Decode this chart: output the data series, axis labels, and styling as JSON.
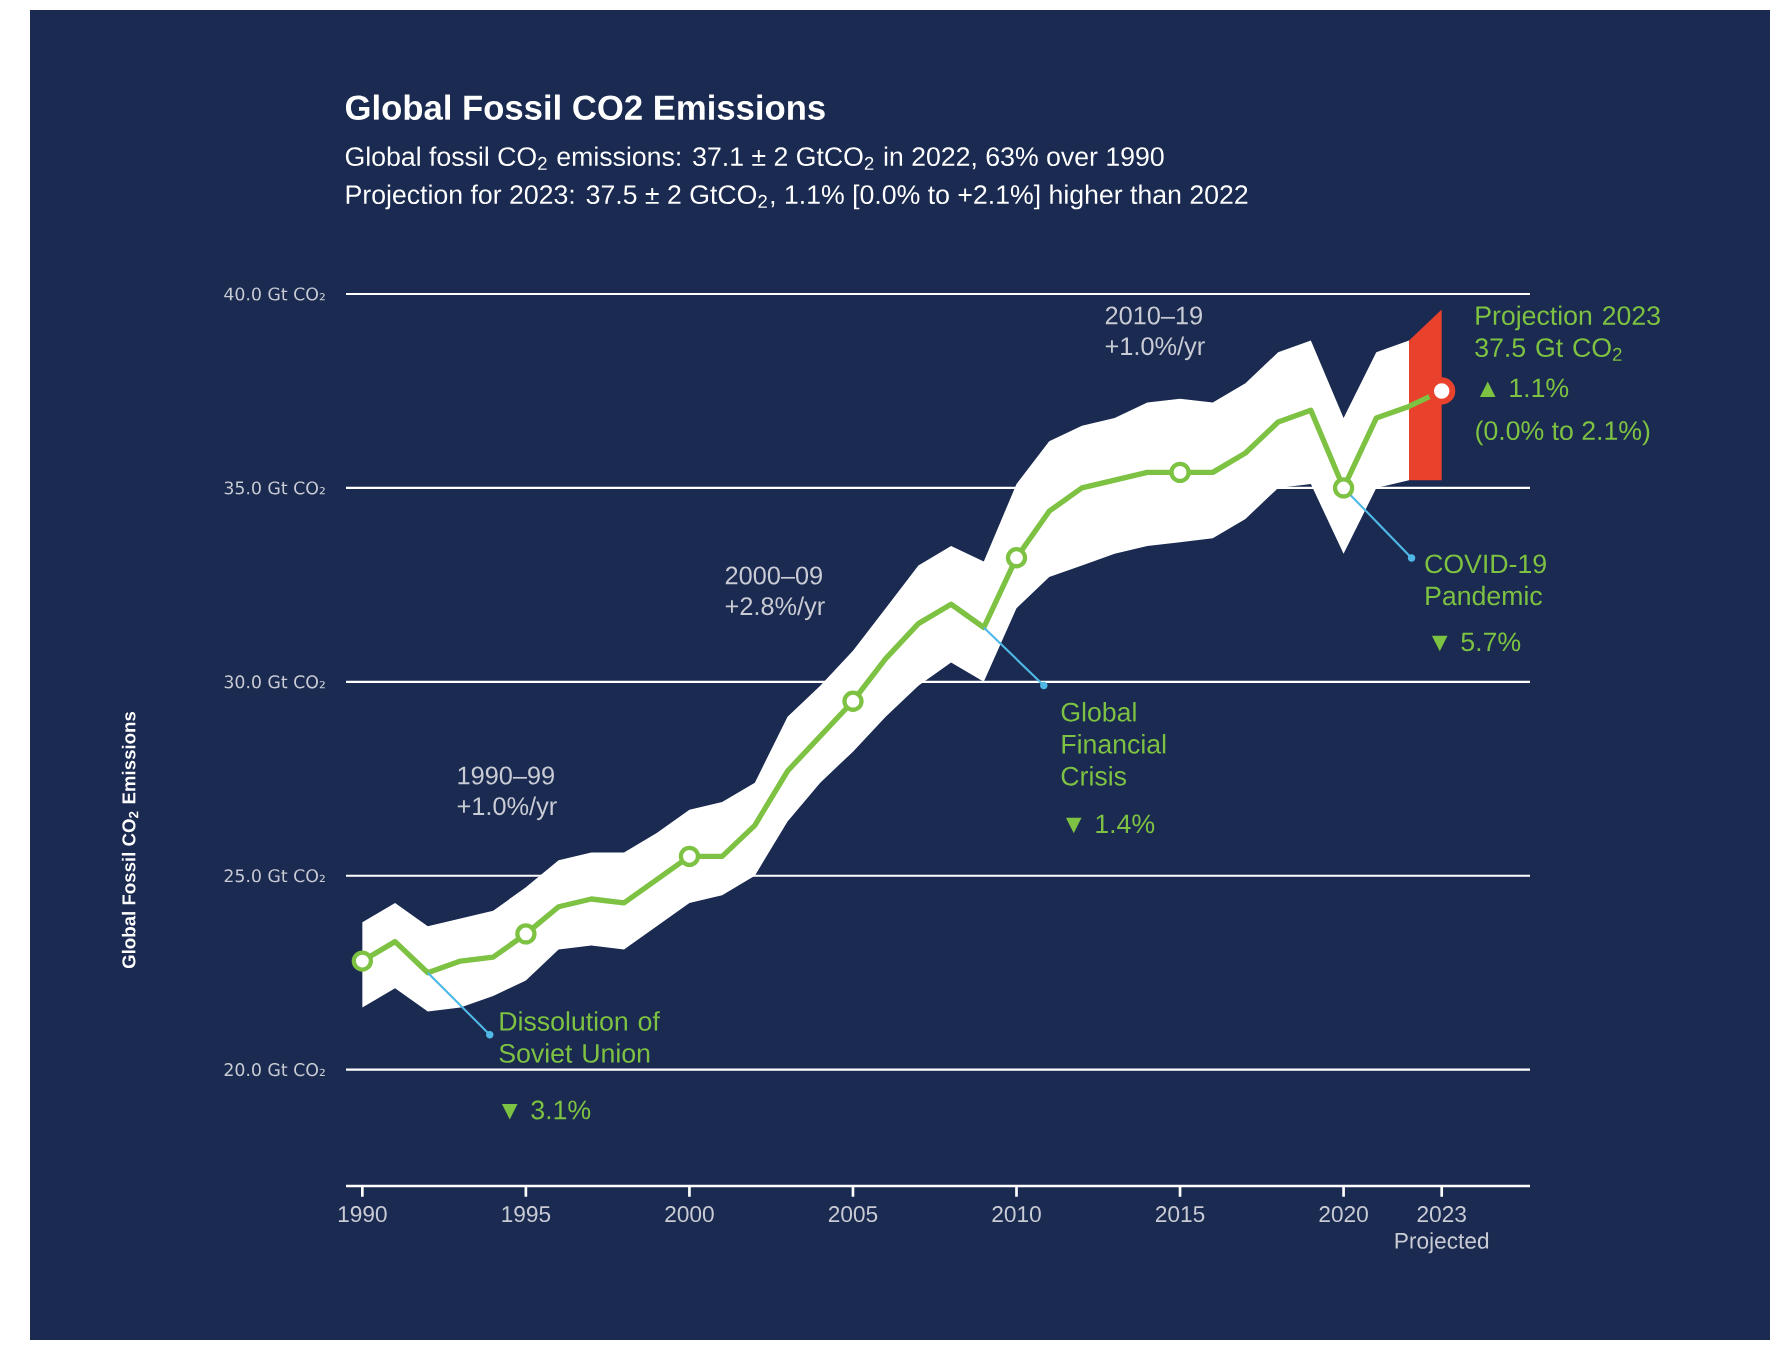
{
  "chart_data": {
    "type": "line",
    "title": "Global Fossil CO2 Emissions",
    "subtitle": "Global fossil CO$_{2}$ emissions: 37.1 ± 2 GtCO$_{2}$ in 2022, 63% over 1990",
    "ylabel": "Global Fossil CO$_{2}$ Emissions",
    "xlim": [
      1989.5,
      2025.7
    ],
    "ylim": [
      17,
      40
    ],
    "xticks": [
      1990,
      1995,
      2000,
      2005,
      2010,
      2015,
      2020,
      {
        "value": 2023,
        "label": "2023 Projected"
      }
    ],
    "yticks": [
      {
        "value": 20,
        "label": "20.0 Gt CO₂"
      },
      {
        "value": 25,
        "label": "25.0 Gt CO₂"
      },
      {
        "value": 30,
        "label": "30.0 Gt CO₂"
      },
      {
        "value": 35,
        "label": "35.0 Gt CO₂"
      },
      {
        "value": 40,
        "label": "40.0 Gt CO₂"
      }
    ],
    "grid": "y",
    "series": [
      {
        "color": "#7dc242",
        "x": [
          1990,
          1991,
          1992,
          1993,
          1994,
          1995,
          1996,
          1997,
          1998,
          1999,
          2000,
          2001,
          2002,
          2003,
          2004,
          2005,
          2006,
          2007,
          2008,
          2009,
          2010,
          2011,
          2012,
          2013,
          2014,
          2015,
          2016,
          2017,
          2018,
          2019,
          2020,
          2021,
          2022,
          2023
        ],
        "values": [
          22.8,
          23.3,
          22.5,
          22.8,
          22.9,
          23.5,
          24.2,
          24.4,
          24.3,
          24.9,
          25.5,
          25.5,
          26.3,
          27.7,
          28.6,
          29.5,
          30.6,
          31.5,
          32.0,
          31.4,
          33.2,
          34.4,
          35.0,
          35.2,
          35.4,
          35.4,
          35.4,
          35.9,
          36.7,
          37.0,
          35.0,
          36.8,
          37.1,
          37.5
        ],
        "upper": [
          23.8,
          24.3,
          23.7,
          23.9,
          24.1,
          24.7,
          25.4,
          25.6,
          25.6,
          26.1,
          26.7,
          26.9,
          27.4,
          29.1,
          29.9,
          30.8,
          31.9,
          33.0,
          33.5,
          33.1,
          35.1,
          36.2,
          36.6,
          36.8,
          37.2,
          37.3,
          37.2,
          37.7,
          38.5,
          38.8,
          36.8,
          38.5,
          38.8,
          null
        ],
        "lower": [
          21.6,
          22.1,
          21.5,
          21.6,
          21.9,
          22.3,
          23.1,
          23.2,
          23.1,
          23.7,
          24.3,
          24.5,
          25.0,
          26.4,
          27.4,
          28.2,
          29.1,
          29.9,
          30.5,
          30.0,
          31.9,
          32.7,
          33.0,
          33.3,
          33.5,
          33.6,
          33.7,
          34.2,
          35.0,
          35.1,
          33.3,
          35.0,
          35.2,
          null
        ]
      },
      {
        "type": "scatter",
        "color": "#7dc242",
        "x": [
          1990,
          1995,
          2000,
          2005,
          2010,
          2015,
          2020
        ],
        "values": [
          22.8,
          23.5,
          25.5,
          29.5,
          33.2,
          35.4,
          35.0
        ]
      },
      {
        "type": "scatter",
        "color": "#e8412c",
        "x": [
          2022,
          2023
        ],
        "values": [
          null,
          37.5
        ],
        "upper": [
          38.8,
          39.6
        ],
        "lower": [
          35.2,
          35.2
        ]
      }
    ],
    "annotations": [
      "Projection for 2023: 37.5 ± 2 GtCO$_{2}$, 1.1% [0.0% to +2.1%] higher than 2022",
      "1990–99 +1.0%/yr",
      "2000–09 +2.8%/yr",
      "2010–19 +1.0%/yr",
      {
        "text": "Dissolution of Soviet Union",
        "x": 1992,
        "y": 22.5
      },
      "▼ 3.1%",
      {
        "text": "Global Financial Crisis",
        "x": 2009,
        "y": 31.4
      },
      "▼ 1.4%",
      {
        "text": "COVID-19 Pandemic",
        "x": 2020,
        "y": 35.0
      },
      "▼ 5.7%",
      {
        "text": "Projection 2023 37.5 Gt CO$_{2}$",
        "x": 2023,
        "y": 37.5
      },
      "▲ 1.1%",
      "(0.0% to 2.1%)"
    ]
  }
}
